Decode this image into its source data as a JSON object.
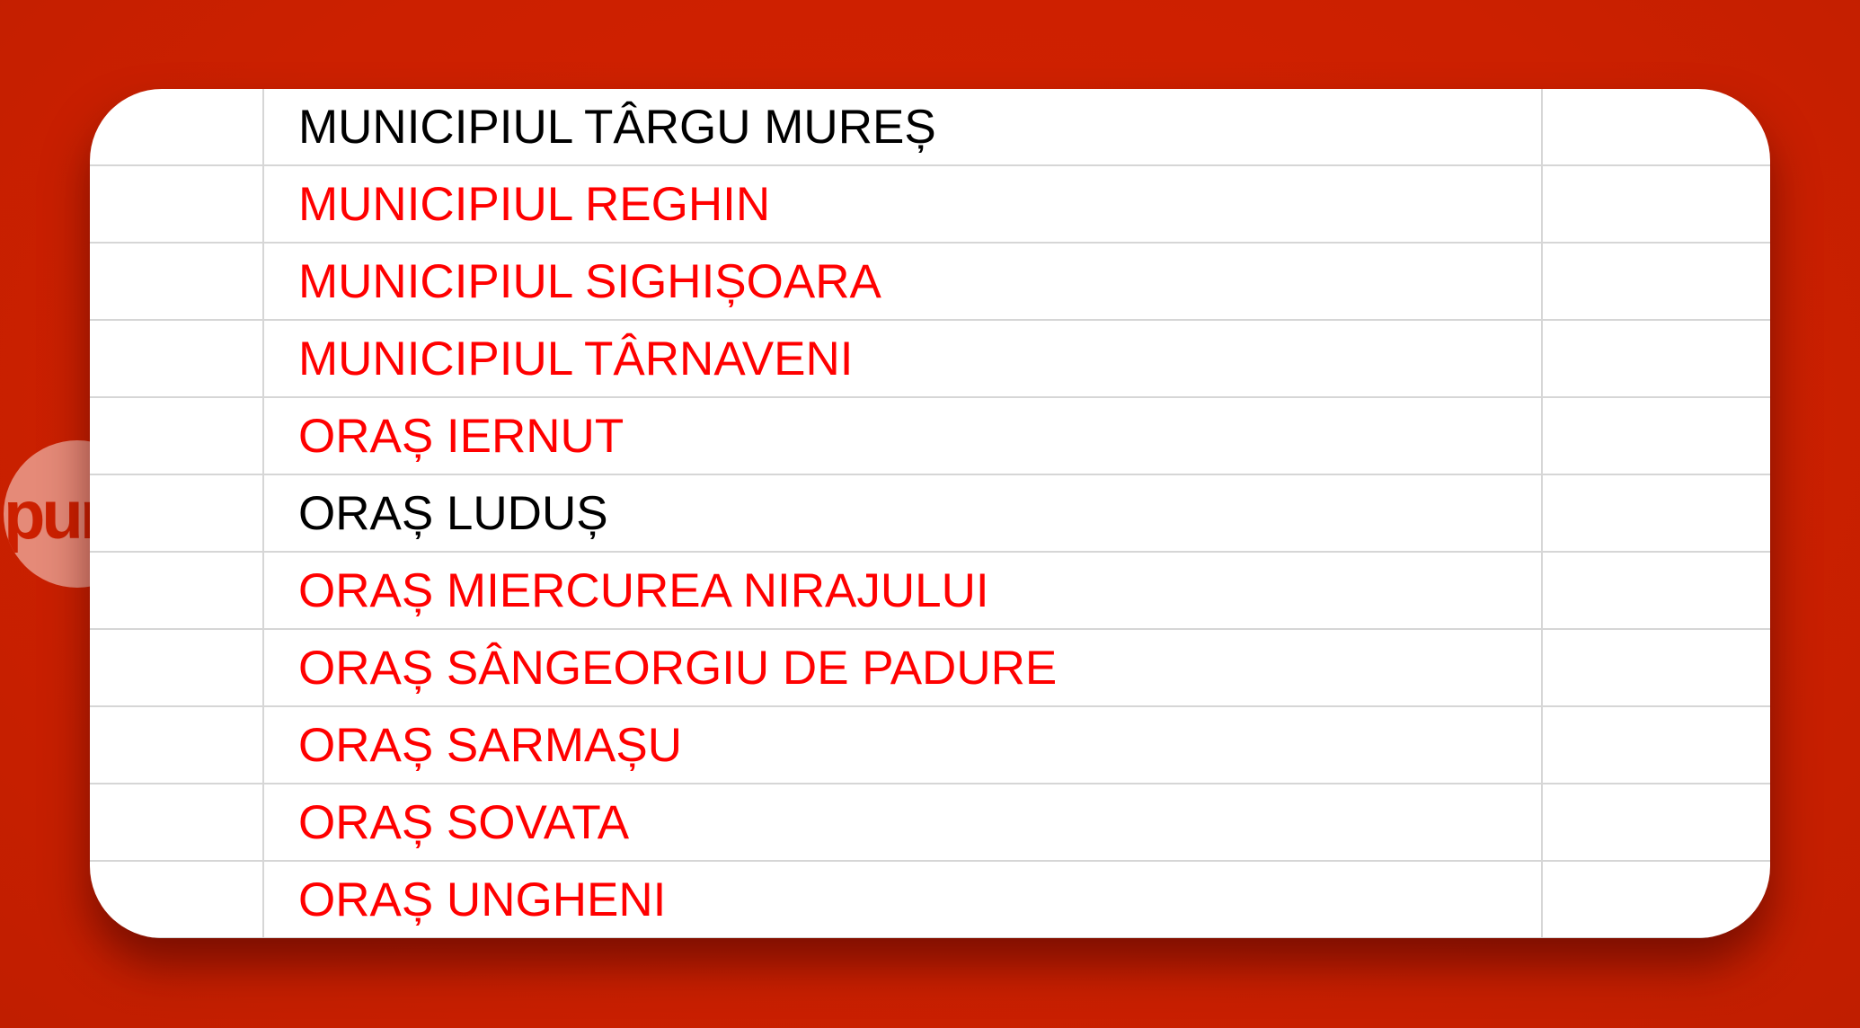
{
  "logo": {
    "text": "pun"
  },
  "colors": {
    "background": "#cc2000",
    "highlight_text": "#ff0000",
    "normal_text": "#000000"
  },
  "table": {
    "rows": [
      {
        "name": "MUNICIPIUL TÂRGU MUREȘ",
        "highlighted": false
      },
      {
        "name": "MUNICIPIUL REGHIN",
        "highlighted": true
      },
      {
        "name": "MUNICIPIUL SIGHIȘOARA",
        "highlighted": true
      },
      {
        "name": "MUNICIPIUL TÂRNAVENI",
        "highlighted": true
      },
      {
        "name": "ORAȘ IERNUT",
        "highlighted": true
      },
      {
        "name": "ORAȘ LUDUȘ",
        "highlighted": false
      },
      {
        "name": "ORAȘ MIERCUREA NIRAJULUI",
        "highlighted": true
      },
      {
        "name": "ORAȘ SÂNGEORGIU DE PADURE",
        "highlighted": true
      },
      {
        "name": "ORAȘ SARMAȘU",
        "highlighted": true
      },
      {
        "name": "ORAȘ SOVATA",
        "highlighted": true
      },
      {
        "name": "ORAȘ UNGHENI",
        "highlighted": true
      }
    ]
  }
}
